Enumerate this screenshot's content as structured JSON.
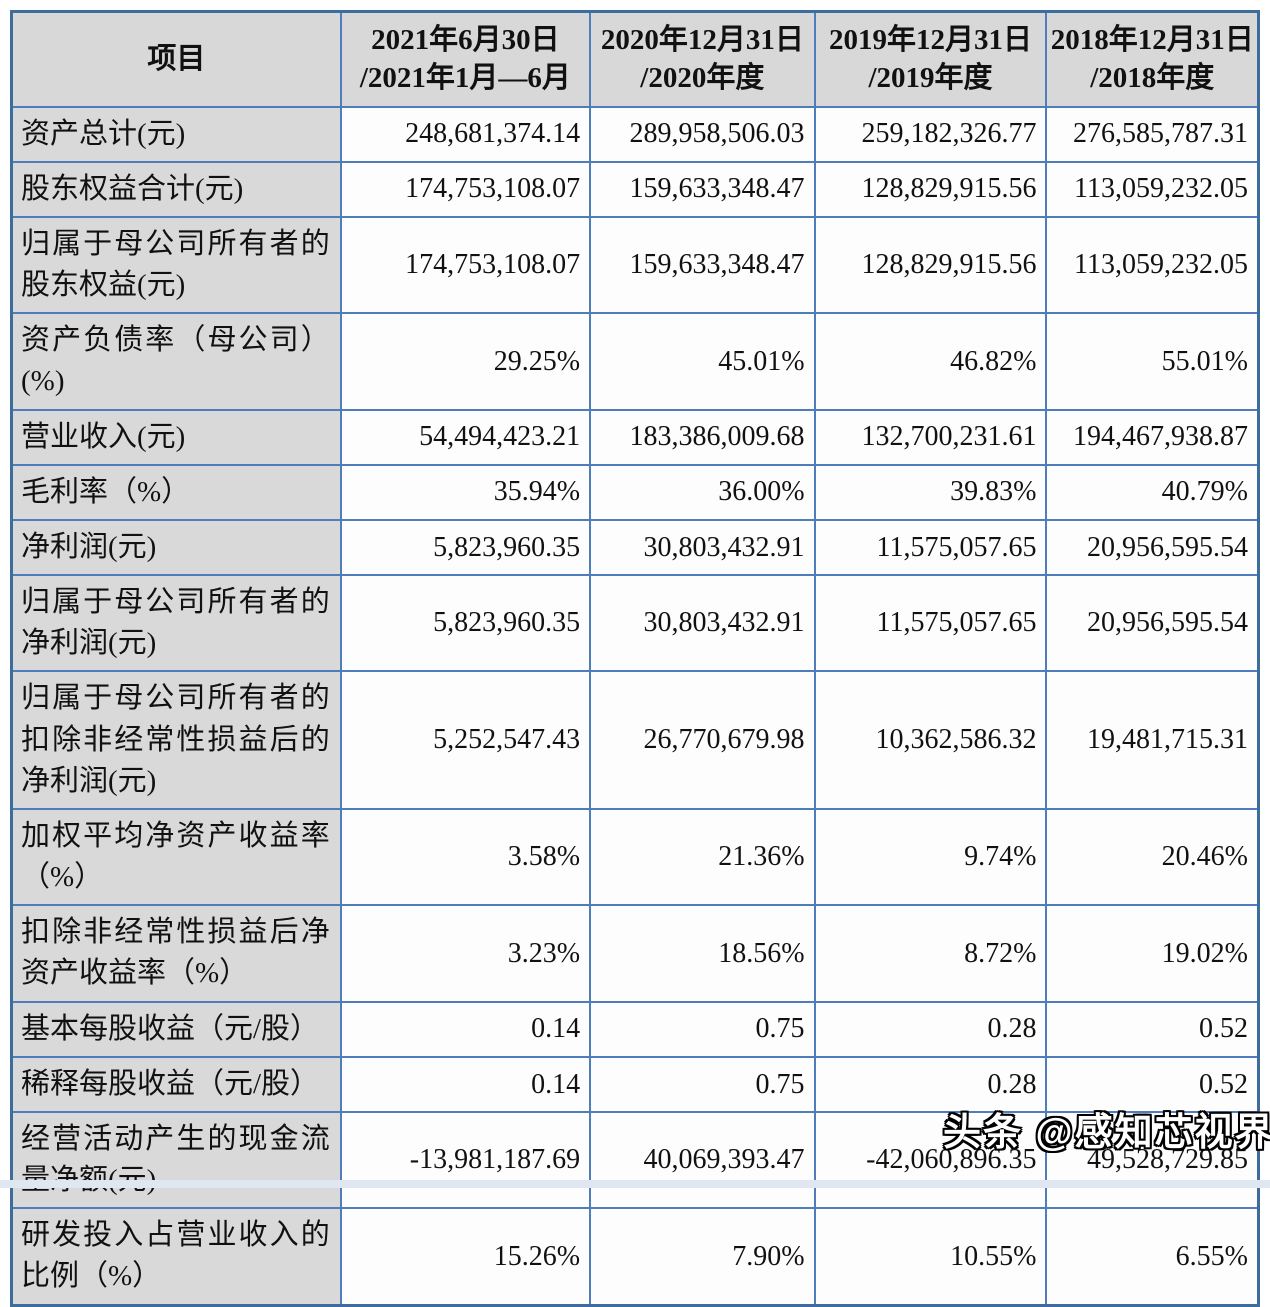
{
  "table": {
    "border_color": "#4f7cbb",
    "outer_border_color": "#3e6d9c",
    "header_bg": "#d8d8d8",
    "label_bg": "#d9d9d9",
    "data_bg": "#fdfdfe",
    "columns": [
      "项目",
      "2021年6月30日\n/2021年1月—6月",
      "2020年12月31日\n/2020年度",
      "2019年12月31日\n/2019年度",
      "2018年12月31日\n/2018年度"
    ],
    "rows": [
      {
        "label": "资产总计(元)",
        "values": [
          "248,681,374.14",
          "289,958,506.03",
          "259,182,326.77",
          "276,585,787.31"
        ]
      },
      {
        "label": "股东权益合计(元)",
        "values": [
          "174,753,108.07",
          "159,633,348.47",
          "128,829,915.56",
          "113,059,232.05"
        ]
      },
      {
        "label": "归属于母公司所有者的股东权益(元)",
        "values": [
          "174,753,108.07",
          "159,633,348.47",
          "128,829,915.56",
          "113,059,232.05"
        ]
      },
      {
        "label": "资产负债率（母公司）(%)",
        "values": [
          "29.25%",
          "45.01%",
          "46.82%",
          "55.01%"
        ]
      },
      {
        "label": "营业收入(元)",
        "values": [
          "54,494,423.21",
          "183,386,009.68",
          "132,700,231.61",
          "194,467,938.87"
        ]
      },
      {
        "label": "毛利率（%）",
        "values": [
          "35.94%",
          "36.00%",
          "39.83%",
          "40.79%"
        ]
      },
      {
        "label": "净利润(元)",
        "values": [
          "5,823,960.35",
          "30,803,432.91",
          "11,575,057.65",
          "20,956,595.54"
        ]
      },
      {
        "label": "归属于母公司所有者的净利润(元)",
        "values": [
          "5,823,960.35",
          "30,803,432.91",
          "11,575,057.65",
          "20,956,595.54"
        ]
      },
      {
        "label": "归属于母公司所有者的扣除非经常性损益后的净利润(元)",
        "values": [
          "5,252,547.43",
          "26,770,679.98",
          "10,362,586.32",
          "19,481,715.31"
        ]
      },
      {
        "label": "加权平均净资产收益率（%）",
        "values": [
          "3.58%",
          "21.36%",
          "9.74%",
          "20.46%"
        ]
      },
      {
        "label": "扣除非经常性损益后净资产收益率（%）",
        "values": [
          "3.23%",
          "18.56%",
          "8.72%",
          "19.02%"
        ]
      },
      {
        "label": "基本每股收益（元/股）",
        "values": [
          "0.14",
          "0.75",
          "0.28",
          "0.52"
        ]
      },
      {
        "label": "稀释每股收益（元/股）",
        "values": [
          "0.14",
          "0.75",
          "0.28",
          "0.52"
        ]
      },
      {
        "label": "经营活动产生的现金流量净额(元)",
        "values": [
          "-13,981,187.69",
          "40,069,393.47",
          "-42,060,896.35",
          "49,528,729.85"
        ]
      },
      {
        "label": "研发投入占营业收入的比例（%）",
        "values": [
          "15.26%",
          "7.90%",
          "10.55%",
          "6.55%"
        ]
      }
    ]
  },
  "watermark": {
    "text": "头条 @感知芯视界",
    "text_color": "#ffffff",
    "outline_color": "#000000"
  }
}
